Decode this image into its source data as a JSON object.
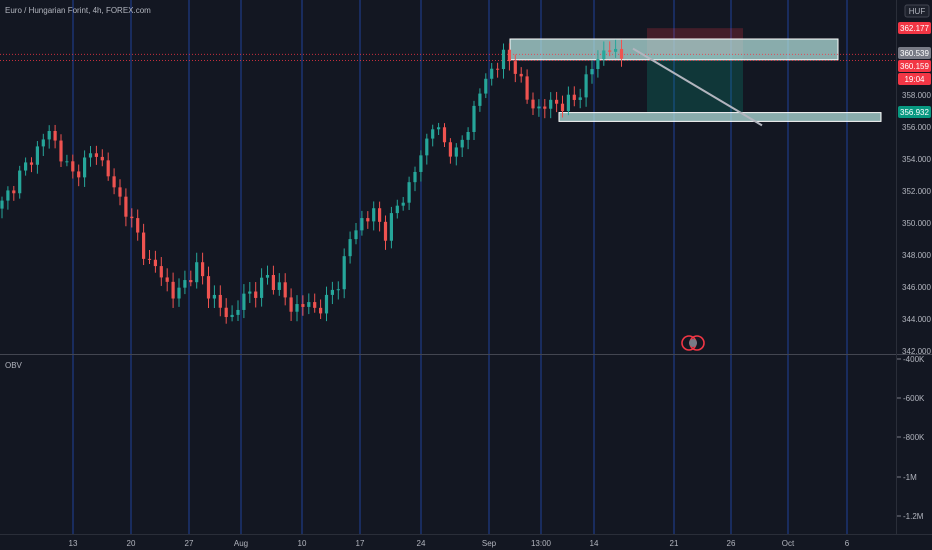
{
  "header": {
    "title": "Euro / Hungarian Forint, 4h, FOREX.com",
    "currency": "HUF"
  },
  "indicator": {
    "label": "OBV"
  },
  "price_badges": [
    {
      "value": "362.177",
      "color": "#f23645"
    },
    {
      "value": "360.539",
      "color": "#787b86"
    },
    {
      "value": "360.159",
      "color": "#f23645"
    },
    {
      "value": "19:04",
      "color": "#f23645"
    },
    {
      "value": "356.932",
      "color": "#089981"
    }
  ],
  "chart_data": {
    "type": "candlestick",
    "price_axis": {
      "ticks": [
        "358.000",
        "356.000",
        "354.000",
        "352.000",
        "350.000",
        "348.000",
        "346.000",
        "344.000",
        "342.000"
      ],
      "range": [
        342.0,
        362.5
      ]
    },
    "obv_axis": {
      "ticks": [
        "-400K",
        "-600K",
        "-800K",
        "-1M",
        "-1.2M"
      ],
      "range": [
        -1300000,
        -330000
      ]
    },
    "x_ticks": [
      "13",
      "20",
      "27",
      "Aug",
      "10",
      "17",
      "24",
      "Sep",
      "13:00",
      "14",
      "21",
      "26",
      "Oct",
      "6"
    ],
    "close_path": [
      [
        0,
        351.2
      ],
      [
        3,
        353.0
      ],
      [
        6,
        354.6
      ],
      [
        8,
        355.8
      ],
      [
        10,
        354.2
      ],
      [
        12,
        353.0
      ],
      [
        14,
        353.8
      ],
      [
        16,
        354.5
      ],
      [
        19,
        352.2
      ],
      [
        21,
        350.8
      ],
      [
        23,
        349.2
      ],
      [
        25,
        347.4
      ],
      [
        27,
        346.9
      ],
      [
        29,
        345.4
      ],
      [
        31,
        346.3
      ],
      [
        33,
        347.2
      ],
      [
        35,
        345.8
      ],
      [
        37,
        344.6
      ],
      [
        39,
        344.1
      ],
      [
        41,
        345.4
      ],
      [
        43,
        345.8
      ],
      [
        45,
        346.6
      ],
      [
        47,
        346.0
      ],
      [
        49,
        344.6
      ],
      [
        51,
        345.0
      ],
      [
        53,
        344.6
      ],
      [
        55,
        345.1
      ],
      [
        57,
        346.3
      ],
      [
        59,
        349.0
      ],
      [
        61,
        350.2
      ],
      [
        63,
        350.6
      ],
      [
        65,
        349.4
      ],
      [
        67,
        351.0
      ],
      [
        69,
        352.3
      ],
      [
        71,
        354.2
      ],
      [
        73,
        356.2
      ],
      [
        75,
        355.0
      ],
      [
        77,
        354.3
      ],
      [
        79,
        356.0
      ],
      [
        81,
        358.2
      ],
      [
        83,
        359.6
      ],
      [
        85,
        360.4
      ],
      [
        87,
        359.8
      ],
      [
        89,
        357.7
      ],
      [
        91,
        357.1
      ],
      [
        93,
        357.5
      ],
      [
        95,
        357.4
      ],
      [
        97,
        357.7
      ],
      [
        99,
        358.9
      ],
      [
        101,
        360.4
      ],
      [
        103,
        360.9
      ],
      [
        105,
        360.3
      ]
    ],
    "obv_line": [],
    "annotations": {
      "resistance_zone": [
        360.2,
        361.5
      ],
      "support_zone": [
        356.6,
        356.9
      ],
      "short_position": {
        "entry": 360.539,
        "stop": 362.177,
        "target": 356.932
      },
      "projection_line": [
        360.9,
        356.1
      ]
    }
  }
}
